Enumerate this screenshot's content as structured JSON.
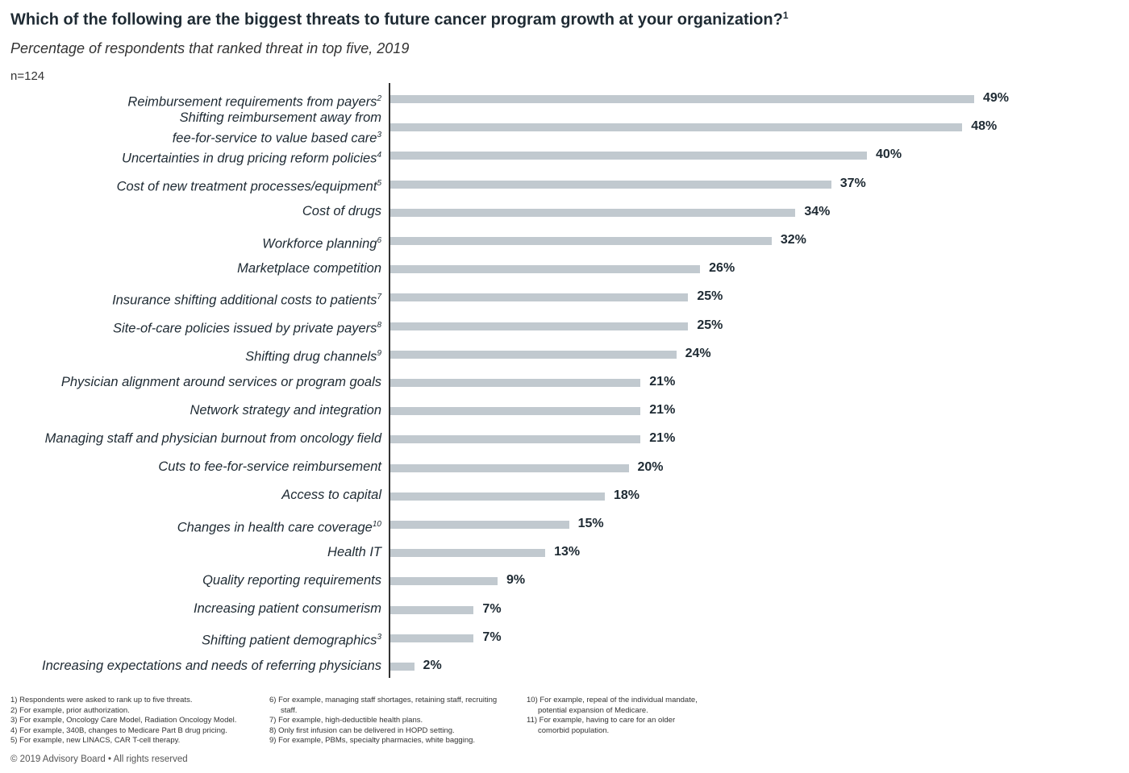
{
  "chart_data": {
    "type": "bar",
    "orientation": "horizontal",
    "title": "Which of the following are the biggest threats to future cancer program growth at your organization?",
    "title_sup": "1",
    "subtitle": "Percentage of respondents that ranked threat in top five, 2019",
    "sample": "n=124",
    "xlim": [
      0,
      50
    ],
    "categories": [
      {
        "label": "Reimbursement requirements from payers",
        "sup": "2"
      },
      {
        "label": "Shifting reimbursement away from\nfee-for-service to value based care",
        "sup": "3"
      },
      {
        "label": "Uncertainties in drug pricing reform policies",
        "sup": "4"
      },
      {
        "label": "Cost of new treatment processes/equipment",
        "sup": "5"
      },
      {
        "label": "Cost of drugs",
        "sup": ""
      },
      {
        "label": "Workforce planning",
        "sup": "6"
      },
      {
        "label": "Marketplace competition",
        "sup": ""
      },
      {
        "label": "Insurance shifting additional costs to patients",
        "sup": "7"
      },
      {
        "label": "Site-of-care policies issued by private payers",
        "sup": "8"
      },
      {
        "label": "Shifting drug channels",
        "sup": "9"
      },
      {
        "label": "Physician alignment around services or program goals",
        "sup": ""
      },
      {
        "label": "Network strategy and integration",
        "sup": ""
      },
      {
        "label": "Managing staff and physician burnout from oncology field",
        "sup": ""
      },
      {
        "label": "Cuts to fee-for-service reimbursement",
        "sup": ""
      },
      {
        "label": "Access to capital",
        "sup": ""
      },
      {
        "label": "Changes in health care coverage",
        "sup": "10"
      },
      {
        "label": "Health IT",
        "sup": ""
      },
      {
        "label": "Quality reporting requirements",
        "sup": ""
      },
      {
        "label": "Increasing patient consumerism",
        "sup": ""
      },
      {
        "label": "Shifting patient demographics",
        "sup": "3"
      },
      {
        "label": "Increasing expectations and needs of referring physicians",
        "sup": ""
      }
    ],
    "values": [
      49,
      48,
      40,
      37,
      34,
      32,
      26,
      25,
      25,
      24,
      21,
      21,
      21,
      20,
      18,
      15,
      13,
      9,
      7,
      7,
      2
    ],
    "value_suffix": "%",
    "bar_color": "#c1c9cf"
  },
  "footnotes": {
    "col1": [
      "1) Respondents were asked to rank up to five threats.",
      "2) For example, prior authorization.",
      "3) For example, Oncology Care Model, Radiation Oncology Model.",
      "4) For example, 340B, changes to Medicare Part B drug pricing.",
      "5) For example, new LINACS, CAR T-cell therapy."
    ],
    "col2": [
      "6) For example, managing staff shortages, retaining staff, recruiting staff.",
      "7) For example, high-deductible health plans.",
      "8) Only first infusion can be delivered in HOPD setting.",
      "9) For example, PBMs, specialty pharmacies, white bagging."
    ],
    "col3": [
      "10) For example, repeal of the individual mandate, potential expansion of Medicare.",
      "11) For example, having to care for an older comorbid population."
    ]
  },
  "copyright": "© 2019 Advisory Board • All rights reserved"
}
